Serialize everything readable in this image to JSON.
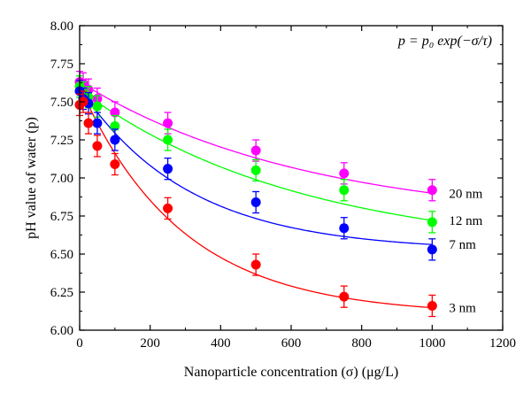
{
  "chart_data": {
    "type": "scatter",
    "title": "",
    "xlabel": "Nanoparticle concentration (σ) (μg/L)",
    "ylabel": "pH value of water (p)",
    "xlim": [
      0,
      1200
    ],
    "ylim": [
      6.0,
      8.0
    ],
    "xticks": [
      0,
      200,
      400,
      600,
      800,
      1000,
      1200
    ],
    "yticks": [
      6.0,
      6.25,
      6.5,
      6.75,
      7.0,
      7.25,
      7.5,
      7.75,
      8.0
    ],
    "xtick_labels": [
      "0",
      "200",
      "400",
      "600",
      "800",
      "1000",
      "1200"
    ],
    "ytick_labels": [
      "6.00",
      "6.25",
      "6.50",
      "6.75",
      "7.00",
      "7.25",
      "7.50",
      "7.75",
      "8.00"
    ],
    "grid": false,
    "legend": "none",
    "equation": {
      "lhs": "p",
      "rhs": "p₀ exp(−σ/τ)"
    },
    "x": [
      0,
      10,
      25,
      50,
      100,
      250,
      500,
      750,
      1000
    ],
    "series": [
      {
        "name": "20 nm",
        "color": "#ff00ff",
        "values": [
          7.63,
          7.62,
          7.58,
          7.52,
          7.43,
          7.36,
          7.18,
          7.03,
          6.92
        ],
        "errors": [
          0.07,
          0.07,
          0.07,
          0.07,
          0.07,
          0.07,
          0.07,
          0.07,
          0.07
        ],
        "fit": {
          "p_inf": 6.7,
          "a": 0.93,
          "tau": 650
        }
      },
      {
        "name": "12 nm",
        "color": "#00ff00",
        "values": [
          7.6,
          7.56,
          7.53,
          7.47,
          7.34,
          7.25,
          7.05,
          6.92,
          6.71
        ],
        "errors": [
          0.07,
          0.07,
          0.07,
          0.07,
          0.07,
          0.07,
          0.07,
          0.07,
          0.07
        ],
        "fit": {
          "p_inf": 6.5,
          "a": 1.08,
          "tau": 630
        }
      },
      {
        "name": "7 nm",
        "color": "#0000ff",
        "values": [
          7.57,
          7.52,
          7.49,
          7.36,
          7.25,
          7.06,
          6.84,
          6.67,
          6.53
        ],
        "errors": [
          0.07,
          0.07,
          0.07,
          0.07,
          0.07,
          0.07,
          0.07,
          0.07,
          0.07
        ],
        "fit": {
          "p_inf": 6.52,
          "a": 1.07,
          "tau": 310
        }
      },
      {
        "name": "3 nm",
        "color": "#ff0000",
        "values": [
          7.48,
          7.5,
          7.36,
          7.21,
          7.09,
          6.8,
          6.43,
          6.22,
          6.16
        ],
        "errors": [
          0.07,
          0.07,
          0.07,
          0.07,
          0.07,
          0.07,
          0.07,
          0.07,
          0.07
        ],
        "fit": {
          "p_inf": 6.1,
          "a": 1.5,
          "tau": 290
        }
      }
    ]
  }
}
